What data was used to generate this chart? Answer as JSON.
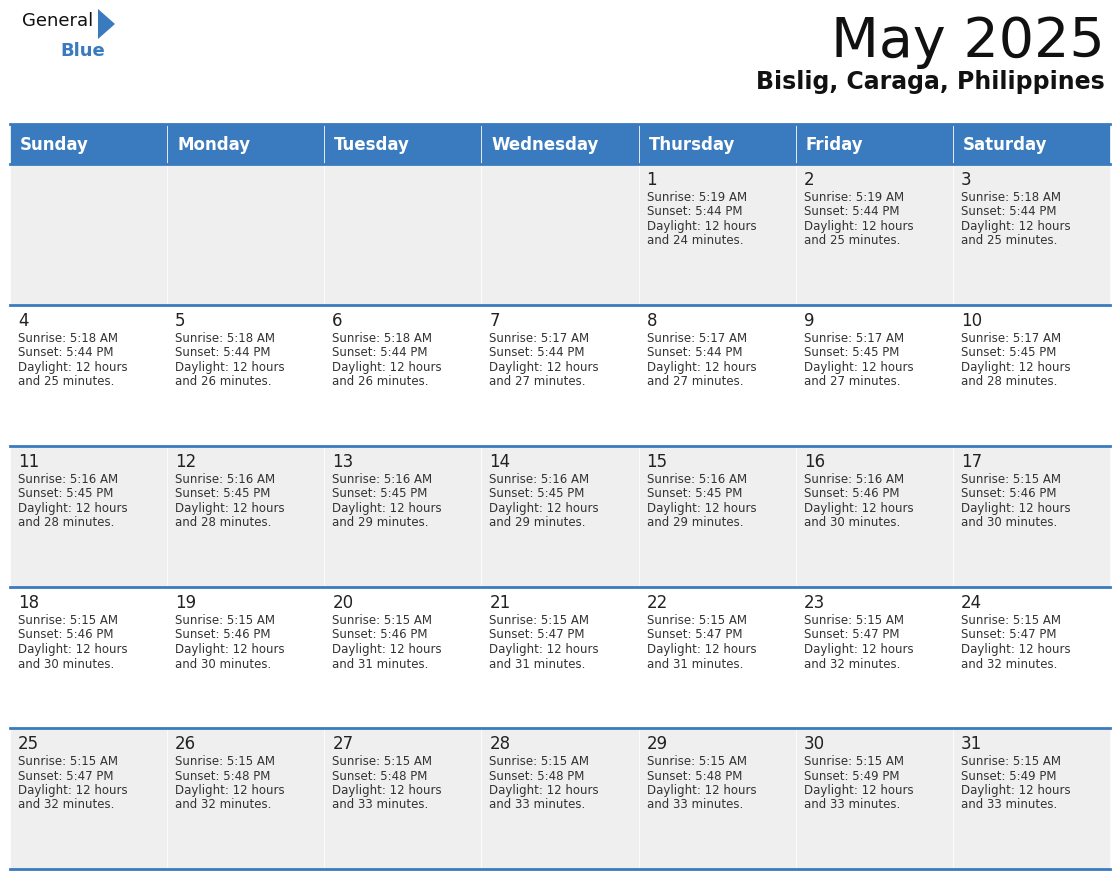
{
  "title": "May 2025",
  "subtitle": "Bislig, Caraga, Philippines",
  "header_bg_color": "#3a7bbf",
  "header_text_color": "#ffffff",
  "day_names": [
    "Sunday",
    "Monday",
    "Tuesday",
    "Wednesday",
    "Thursday",
    "Friday",
    "Saturday"
  ],
  "cell_bg_even": "#efefef",
  "cell_bg_odd": "#ffffff",
  "cell_border_color": "#3a7bbf",
  "day_num_color": "#222222",
  "info_color": "#333333",
  "title_fontsize": 40,
  "subtitle_fontsize": 17,
  "header_fontsize": 12,
  "day_num_fontsize": 12,
  "info_fontsize": 8.5,
  "calendar": [
    [
      null,
      null,
      null,
      null,
      {
        "day": 1,
        "sunrise": "5:19 AM",
        "sunset": "5:44 PM",
        "daylight": "12 hours",
        "daylight2": "and 24 minutes."
      },
      {
        "day": 2,
        "sunrise": "5:19 AM",
        "sunset": "5:44 PM",
        "daylight": "12 hours",
        "daylight2": "and 25 minutes."
      },
      {
        "day": 3,
        "sunrise": "5:18 AM",
        "sunset": "5:44 PM",
        "daylight": "12 hours",
        "daylight2": "and 25 minutes."
      }
    ],
    [
      {
        "day": 4,
        "sunrise": "5:18 AM",
        "sunset": "5:44 PM",
        "daylight": "12 hours",
        "daylight2": "and 25 minutes."
      },
      {
        "day": 5,
        "sunrise": "5:18 AM",
        "sunset": "5:44 PM",
        "daylight": "12 hours",
        "daylight2": "and 26 minutes."
      },
      {
        "day": 6,
        "sunrise": "5:18 AM",
        "sunset": "5:44 PM",
        "daylight": "12 hours",
        "daylight2": "and 26 minutes."
      },
      {
        "day": 7,
        "sunrise": "5:17 AM",
        "sunset": "5:44 PM",
        "daylight": "12 hours",
        "daylight2": "and 27 minutes."
      },
      {
        "day": 8,
        "sunrise": "5:17 AM",
        "sunset": "5:44 PM",
        "daylight": "12 hours",
        "daylight2": "and 27 minutes."
      },
      {
        "day": 9,
        "sunrise": "5:17 AM",
        "sunset": "5:45 PM",
        "daylight": "12 hours",
        "daylight2": "and 27 minutes."
      },
      {
        "day": 10,
        "sunrise": "5:17 AM",
        "sunset": "5:45 PM",
        "daylight": "12 hours",
        "daylight2": "and 28 minutes."
      }
    ],
    [
      {
        "day": 11,
        "sunrise": "5:16 AM",
        "sunset": "5:45 PM",
        "daylight": "12 hours",
        "daylight2": "and 28 minutes."
      },
      {
        "day": 12,
        "sunrise": "5:16 AM",
        "sunset": "5:45 PM",
        "daylight": "12 hours",
        "daylight2": "and 28 minutes."
      },
      {
        "day": 13,
        "sunrise": "5:16 AM",
        "sunset": "5:45 PM",
        "daylight": "12 hours",
        "daylight2": "and 29 minutes."
      },
      {
        "day": 14,
        "sunrise": "5:16 AM",
        "sunset": "5:45 PM",
        "daylight": "12 hours",
        "daylight2": "and 29 minutes."
      },
      {
        "day": 15,
        "sunrise": "5:16 AM",
        "sunset": "5:45 PM",
        "daylight": "12 hours",
        "daylight2": "and 29 minutes."
      },
      {
        "day": 16,
        "sunrise": "5:16 AM",
        "sunset": "5:46 PM",
        "daylight": "12 hours",
        "daylight2": "and 30 minutes."
      },
      {
        "day": 17,
        "sunrise": "5:15 AM",
        "sunset": "5:46 PM",
        "daylight": "12 hours",
        "daylight2": "and 30 minutes."
      }
    ],
    [
      {
        "day": 18,
        "sunrise": "5:15 AM",
        "sunset": "5:46 PM",
        "daylight": "12 hours",
        "daylight2": "and 30 minutes."
      },
      {
        "day": 19,
        "sunrise": "5:15 AM",
        "sunset": "5:46 PM",
        "daylight": "12 hours",
        "daylight2": "and 30 minutes."
      },
      {
        "day": 20,
        "sunrise": "5:15 AM",
        "sunset": "5:46 PM",
        "daylight": "12 hours",
        "daylight2": "and 31 minutes."
      },
      {
        "day": 21,
        "sunrise": "5:15 AM",
        "sunset": "5:47 PM",
        "daylight": "12 hours",
        "daylight2": "and 31 minutes."
      },
      {
        "day": 22,
        "sunrise": "5:15 AM",
        "sunset": "5:47 PM",
        "daylight": "12 hours",
        "daylight2": "and 31 minutes."
      },
      {
        "day": 23,
        "sunrise": "5:15 AM",
        "sunset": "5:47 PM",
        "daylight": "12 hours",
        "daylight2": "and 32 minutes."
      },
      {
        "day": 24,
        "sunrise": "5:15 AM",
        "sunset": "5:47 PM",
        "daylight": "12 hours",
        "daylight2": "and 32 minutes."
      }
    ],
    [
      {
        "day": 25,
        "sunrise": "5:15 AM",
        "sunset": "5:47 PM",
        "daylight": "12 hours",
        "daylight2": "and 32 minutes."
      },
      {
        "day": 26,
        "sunrise": "5:15 AM",
        "sunset": "5:48 PM",
        "daylight": "12 hours",
        "daylight2": "and 32 minutes."
      },
      {
        "day": 27,
        "sunrise": "5:15 AM",
        "sunset": "5:48 PM",
        "daylight": "12 hours",
        "daylight2": "and 33 minutes."
      },
      {
        "day": 28,
        "sunrise": "5:15 AM",
        "sunset": "5:48 PM",
        "daylight": "12 hours",
        "daylight2": "and 33 minutes."
      },
      {
        "day": 29,
        "sunrise": "5:15 AM",
        "sunset": "5:48 PM",
        "daylight": "12 hours",
        "daylight2": "and 33 minutes."
      },
      {
        "day": 30,
        "sunrise": "5:15 AM",
        "sunset": "5:49 PM",
        "daylight": "12 hours",
        "daylight2": "and 33 minutes."
      },
      {
        "day": 31,
        "sunrise": "5:15 AM",
        "sunset": "5:49 PM",
        "daylight": "12 hours",
        "daylight2": "and 33 minutes."
      }
    ]
  ]
}
